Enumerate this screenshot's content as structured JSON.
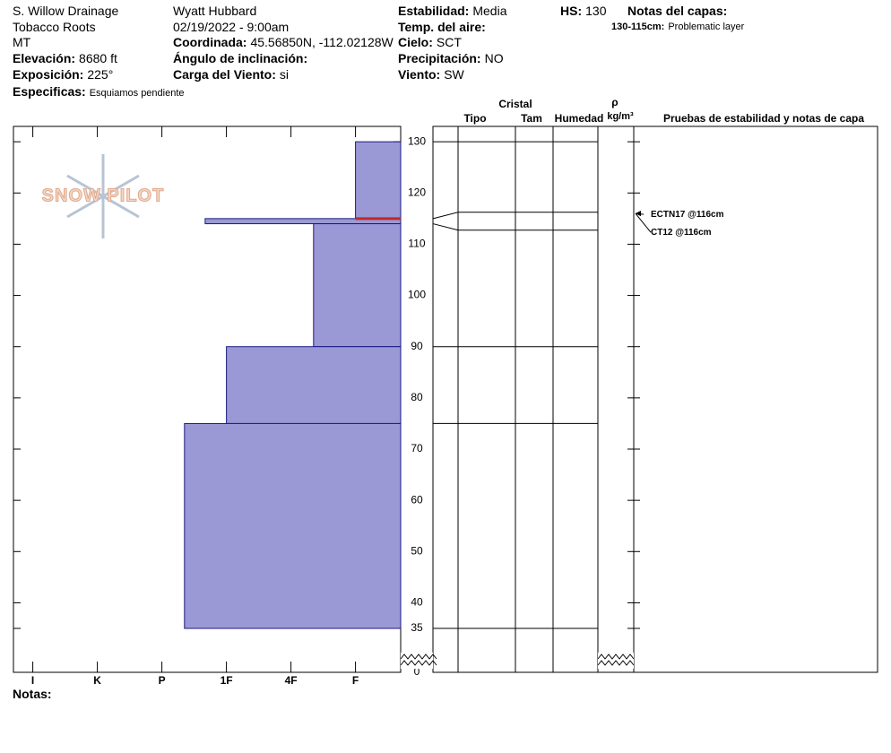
{
  "header": {
    "location": "S. Willow Drainage",
    "range": "Tobacco Roots",
    "state": "MT",
    "elevation": {
      "label": "Elevación:",
      "value": "8680 ft"
    },
    "aspect": {
      "label": "Exposición:",
      "value": "225°"
    },
    "specifics": {
      "label": "Especificas:",
      "value": "Esquiamos pendiente"
    },
    "observer": "Wyatt Hubbard",
    "datetime": "02/19/2022 - 9:00am",
    "coords": {
      "label": "Coordinada:",
      "value": "45.56850N, -112.02128W"
    },
    "incline": {
      "label": "Ángulo de inclinación:"
    },
    "wind_load": {
      "label": "Carga del Viento:",
      "value": "si"
    },
    "stability": {
      "label": "Estabilidad:",
      "value": "Media"
    },
    "air_temp": {
      "label": "Temp. del aire:"
    },
    "sky": {
      "label": "Cielo:",
      "value": "SCT"
    },
    "precip": {
      "label": "Precipitación:",
      "value": "NO"
    },
    "wind": {
      "label": "Viento:",
      "value": "SW"
    },
    "hs": {
      "label": "HS:",
      "value": "130"
    },
    "layer_notes_title": "Notas del capas:",
    "layer_note": {
      "label": "130-115cm:",
      "value": "Problematic layer"
    },
    "notes_label": "Notas:",
    "logo": "SNOW PILOT"
  },
  "table": {
    "cristal": "Cristal",
    "tipo": "Tipo",
    "tam": "Tam",
    "humedad": "Humedad",
    "rho": "ρ",
    "density_unit": "kg/m³",
    "tests_title": "Pruebas de estabilidad y notas de capa"
  },
  "chart_data": {
    "type": "snow-profile",
    "layers": [
      {
        "top": 130,
        "bottom": 115,
        "hardness": 1
      },
      {
        "top": 115,
        "bottom": 114,
        "hardness": 3.33
      },
      {
        "top": 114,
        "bottom": 90,
        "hardness": 1.65
      },
      {
        "top": 90,
        "bottom": 75,
        "hardness": 3
      },
      {
        "top": 75,
        "bottom": 35,
        "hardness": 3.65
      }
    ],
    "color": "#9a99d6",
    "xlim": [
      6.3,
      0.3
    ],
    "xticks": [
      {
        "value": 6,
        "label": "I"
      },
      {
        "value": 5,
        "label": "K"
      },
      {
        "value": 4,
        "label": "P"
      },
      {
        "value": 3,
        "label": "1F"
      },
      {
        "value": 2,
        "label": "4F"
      },
      {
        "value": 1,
        "label": "F"
      }
    ],
    "ylim": [
      0,
      133
    ],
    "axis_break": 35,
    "yticks": [
      0,
      35,
      40,
      50,
      60,
      70,
      80,
      90,
      100,
      110,
      120,
      130
    ],
    "problem_layer": 115,
    "problem_color": "#c0282d",
    "tests": [
      {
        "label": "ECTN17 @116cm",
        "depth": 116
      },
      {
        "label": "CT12 @116cm",
        "depth": 116
      }
    ]
  }
}
